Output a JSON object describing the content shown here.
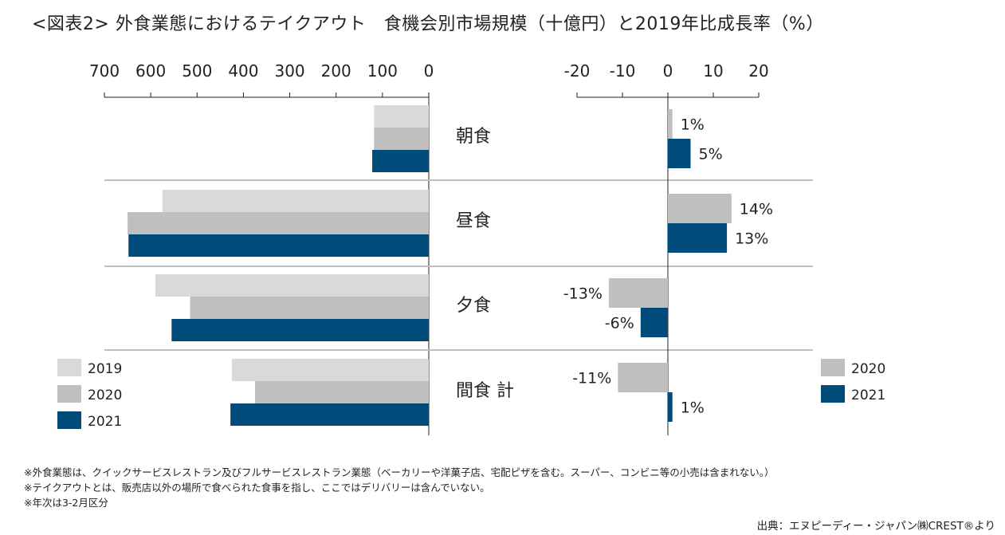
{
  "title": "<図表2> 外食業態におけるテイクアウト　食機会別市場規模（十億円）と2019年比成長率（%）",
  "colors": {
    "2019": "#d9d9d9",
    "2020": "#bfbfbf",
    "2021": "#004b7a",
    "rule": "#bfbfbf",
    "axis": "#222222"
  },
  "chart_data": [
    {
      "type": "bar",
      "orientation": "horizontal",
      "unit": "十億円",
      "direction": "right-to-left",
      "categories": [
        "朝食",
        "昼食",
        "夕食",
        "間食 計"
      ],
      "ticks": [
        "700",
        "600",
        "500",
        "400",
        "300",
        "200",
        "100",
        "0"
      ],
      "xlim": [
        0,
        700
      ],
      "series": [
        {
          "name": "2019",
          "values": [
            118,
            575,
            590,
            425
          ]
        },
        {
          "name": "2020",
          "values": [
            118,
            650,
            515,
            375
          ]
        },
        {
          "name": "2021",
          "values": [
            122,
            648,
            555,
            428
          ]
        }
      ],
      "legend": {
        "position": "bottom-left",
        "labels": [
          "2019",
          "2020",
          "2021"
        ]
      }
    },
    {
      "type": "bar",
      "orientation": "horizontal",
      "unit": "%",
      "categories": [
        "朝食",
        "昼食",
        "夕食",
        "間食 計"
      ],
      "ticks": [
        "-20",
        "-10",
        "0",
        "10",
        "20"
      ],
      "xlim": [
        -20,
        20
      ],
      "series": [
        {
          "name": "2020",
          "values": [
            1,
            14,
            -13,
            -11
          ],
          "labels": [
            "1%",
            "14%",
            "-13%",
            "-11%"
          ]
        },
        {
          "name": "2021",
          "values": [
            5,
            13,
            -6,
            1
          ],
          "labels": [
            "5%",
            "13%",
            "-6%",
            "1%"
          ]
        }
      ],
      "legend": {
        "position": "bottom-right",
        "labels": [
          "2020",
          "2021"
        ]
      }
    }
  ],
  "footnotes": [
    "※外食業態は、クイックサービスレストラン及びフルサービスレストラン業態（ベーカリーや洋菓子店、宅配ピザを含む。スーパー、コンビニ等の小売は含まれない。）",
    "※テイクアウトとは、販売店以外の場所で食べられた食事を指し、ここではデリバリーは含んでいない。",
    "※年次は3-2月区分"
  ],
  "source": "出典：エヌピーディー・ジャパン㈱CREST®より"
}
